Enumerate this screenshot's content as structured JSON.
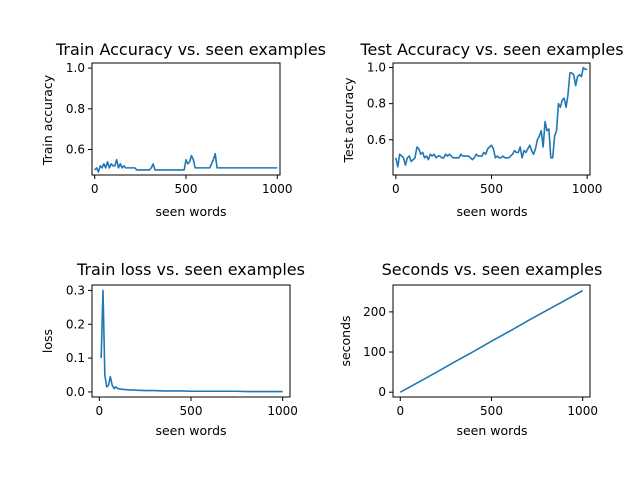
{
  "colors": {
    "line": "#1f77b4",
    "axes": "#000000",
    "background": "#ffffff"
  },
  "chart_data": [
    {
      "id": "train-accuracy",
      "type": "line",
      "title": "Train Accuracy vs. seen examples",
      "xlabel": "seen words",
      "ylabel": "Train accuracy",
      "xlim": [
        -15,
        1015
      ],
      "ylim": [
        0.475,
        1.025
      ],
      "xticks": [
        0,
        500,
        1000
      ],
      "yticks": [
        0.6,
        0.8,
        1.0
      ],
      "grid": false,
      "series": [
        {
          "x": [
            0,
            10,
            20,
            30,
            40,
            50,
            60,
            70,
            80,
            90,
            100,
            110,
            120,
            130,
            140,
            150,
            160,
            170,
            180,
            190,
            200,
            210,
            220,
            230,
            240,
            250,
            260,
            270,
            280,
            290,
            300,
            310,
            320,
            330,
            340,
            350,
            360,
            370,
            380,
            390,
            400,
            410,
            420,
            430,
            440,
            450,
            460,
            470,
            480,
            490,
            500,
            510,
            520,
            530,
            540,
            550,
            560,
            570,
            580,
            590,
            600,
            610,
            620,
            630,
            640,
            650,
            660,
            670,
            680,
            690,
            700,
            710,
            720,
            730,
            740,
            750,
            760,
            770,
            780,
            790,
            800,
            810,
            820,
            830,
            840,
            850,
            860,
            870,
            880,
            890,
            900,
            910,
            920,
            930,
            940,
            950,
            960,
            970,
            980,
            990,
            1000
          ],
          "values": [
            0.5,
            0.51,
            0.49,
            0.52,
            0.51,
            0.53,
            0.51,
            0.54,
            0.51,
            0.53,
            0.52,
            0.52,
            0.55,
            0.51,
            0.53,
            0.51,
            0.52,
            0.51,
            0.51,
            0.51,
            0.51,
            0.51,
            0.51,
            0.5,
            0.5,
            0.5,
            0.5,
            0.5,
            0.5,
            0.5,
            0.5,
            0.51,
            0.53,
            0.5,
            0.5,
            0.5,
            0.5,
            0.5,
            0.5,
            0.5,
            0.5,
            0.5,
            0.5,
            0.5,
            0.5,
            0.5,
            0.5,
            0.5,
            0.5,
            0.5,
            0.55,
            0.53,
            0.54,
            0.57,
            0.55,
            0.51,
            0.51,
            0.51,
            0.51,
            0.51,
            0.51,
            0.51,
            0.51,
            0.51,
            0.53,
            0.55,
            0.58,
            0.51,
            0.51,
            0.51,
            0.51,
            0.51,
            0.51,
            0.51,
            0.51,
            0.51,
            0.51,
            0.51,
            0.51,
            0.51,
            0.51,
            0.51,
            0.51,
            0.51,
            0.51,
            0.51,
            0.51,
            0.51,
            0.51,
            0.51,
            0.51,
            0.51,
            0.51,
            0.51,
            0.51,
            0.51,
            0.51,
            0.51,
            0.51,
            0.51,
            0.51
          ]
        }
      ]
    },
    {
      "id": "test-accuracy",
      "type": "line",
      "title": "Test Accuracy vs. seen examples",
      "xlabel": "seen words",
      "ylabel": "Test accuracy",
      "xlim": [
        -15,
        1015
      ],
      "ylim": [
        0.405,
        1.025
      ],
      "xticks": [
        0,
        500,
        1000
      ],
      "yticks": [
        0.6,
        0.8,
        1.0
      ],
      "grid": false,
      "series": [
        {
          "x": [
            0,
            10,
            20,
            30,
            40,
            50,
            60,
            70,
            80,
            90,
            100,
            110,
            120,
            130,
            140,
            150,
            160,
            170,
            180,
            190,
            200,
            210,
            220,
            230,
            240,
            250,
            260,
            270,
            280,
            290,
            300,
            310,
            320,
            330,
            340,
            350,
            360,
            370,
            380,
            390,
            400,
            410,
            420,
            430,
            440,
            450,
            460,
            470,
            480,
            490,
            500,
            510,
            520,
            530,
            540,
            550,
            560,
            570,
            580,
            590,
            600,
            610,
            620,
            630,
            640,
            650,
            660,
            670,
            680,
            690,
            700,
            710,
            720,
            730,
            740,
            750,
            760,
            770,
            780,
            790,
            800,
            810,
            820,
            830,
            840,
            850,
            860,
            870,
            880,
            890,
            900,
            910,
            920,
            930,
            940,
            950,
            960,
            970,
            980,
            990,
            1000
          ],
          "values": [
            0.5,
            0.45,
            0.52,
            0.51,
            0.5,
            0.46,
            0.5,
            0.51,
            0.48,
            0.49,
            0.5,
            0.56,
            0.55,
            0.52,
            0.53,
            0.5,
            0.51,
            0.49,
            0.52,
            0.51,
            0.52,
            0.5,
            0.51,
            0.51,
            0.5,
            0.5,
            0.52,
            0.51,
            0.52,
            0.51,
            0.5,
            0.5,
            0.5,
            0.5,
            0.52,
            0.51,
            0.51,
            0.51,
            0.51,
            0.5,
            0.49,
            0.5,
            0.52,
            0.51,
            0.51,
            0.51,
            0.53,
            0.52,
            0.55,
            0.56,
            0.57,
            0.55,
            0.5,
            0.51,
            0.5,
            0.5,
            0.51,
            0.5,
            0.5,
            0.5,
            0.51,
            0.52,
            0.54,
            0.53,
            0.53,
            0.56,
            0.5,
            0.54,
            0.53,
            0.55,
            0.57,
            0.54,
            0.52,
            0.55,
            0.6,
            0.62,
            0.65,
            0.56,
            0.7,
            0.65,
            0.66,
            0.5,
            0.5,
            0.62,
            0.65,
            0.8,
            0.78,
            0.82,
            0.83,
            0.78,
            0.85,
            0.97,
            0.97,
            0.96,
            0.9,
            0.95,
            0.96,
            0.95,
            1.0,
            0.99,
            0.99
          ]
        }
      ]
    },
    {
      "id": "train-loss",
      "type": "line",
      "title": "Train loss vs. seen examples",
      "xlabel": "seen words",
      "ylabel": "loss",
      "xlim": [
        -40,
        1040
      ],
      "ylim": [
        -0.015,
        0.316
      ],
      "xticks": [
        0,
        500,
        1000
      ],
      "yticks": [
        0.0,
        0.1,
        0.2,
        0.3
      ],
      "grid": false,
      "series": [
        {
          "x": [
            10,
            20,
            30,
            40,
            50,
            60,
            70,
            80,
            90,
            100,
            120,
            140,
            160,
            180,
            200,
            250,
            300,
            350,
            400,
            450,
            500,
            550,
            600,
            650,
            700,
            750,
            800,
            850,
            900,
            950,
            1000
          ],
          "values": [
            0.1,
            0.3,
            0.05,
            0.015,
            0.02,
            0.045,
            0.02,
            0.01,
            0.015,
            0.01,
            0.008,
            0.007,
            0.006,
            0.006,
            0.005,
            0.004,
            0.004,
            0.003,
            0.003,
            0.003,
            0.002,
            0.002,
            0.002,
            0.002,
            0.002,
            0.002,
            0.001,
            0.001,
            0.001,
            0.001,
            0.001
          ]
        }
      ]
    },
    {
      "id": "seconds",
      "type": "line",
      "title": "Seconds vs. seen examples",
      "xlabel": "seen words",
      "ylabel": "seconds",
      "xlim": [
        -40,
        1040
      ],
      "ylim": [
        -12,
        267
      ],
      "xticks": [
        0,
        500,
        1000
      ],
      "yticks": [
        0,
        100,
        200
      ],
      "grid": false,
      "series": [
        {
          "x": [
            0,
            100,
            200,
            300,
            400,
            500,
            600,
            700,
            800,
            900,
            1000
          ],
          "values": [
            0,
            25,
            50,
            76,
            101,
            127,
            152,
            178,
            203,
            228,
            253
          ]
        }
      ]
    }
  ]
}
